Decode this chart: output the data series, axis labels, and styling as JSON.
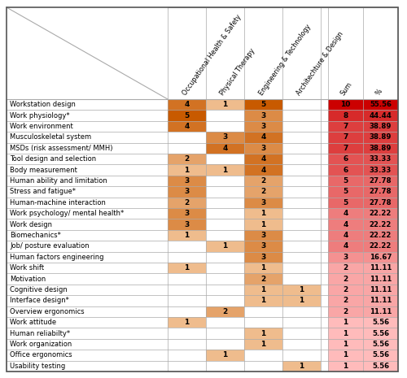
{
  "rows": [
    {
      "label": "Workstation design",
      "ohs": 4,
      "pt": 1,
      "et": 5,
      "ad": 0,
      "sum": 10,
      "pct": "55.56"
    },
    {
      "label": "Work physiology*",
      "ohs": 5,
      "pt": 0,
      "et": 3,
      "ad": 0,
      "sum": 8,
      "pct": "44.44"
    },
    {
      "label": "Work environment",
      "ohs": 4,
      "pt": 0,
      "et": 3,
      "ad": 0,
      "sum": 7,
      "pct": "38.89"
    },
    {
      "label": "Musculoskeletal system",
      "ohs": 0,
      "pt": 3,
      "et": 4,
      "ad": 0,
      "sum": 7,
      "pct": "38.89"
    },
    {
      "label": "MSDs (risk assessment/ MMH)",
      "ohs": 0,
      "pt": 4,
      "et": 3,
      "ad": 0,
      "sum": 7,
      "pct": "38.89"
    },
    {
      "label": "Tool design and selection",
      "ohs": 2,
      "pt": 0,
      "et": 4,
      "ad": 0,
      "sum": 6,
      "pct": "33.33"
    },
    {
      "label": "Body measurement",
      "ohs": 1,
      "pt": 1,
      "et": 4,
      "ad": 0,
      "sum": 6,
      "pct": "33.33"
    },
    {
      "label": "Human ability and limitation",
      "ohs": 3,
      "pt": 0,
      "et": 2,
      "ad": 0,
      "sum": 5,
      "pct": "27.78"
    },
    {
      "label": "Stress and fatigue*",
      "ohs": 3,
      "pt": 0,
      "et": 2,
      "ad": 0,
      "sum": 5,
      "pct": "27.78"
    },
    {
      "label": "Human-machine interaction",
      "ohs": 2,
      "pt": 0,
      "et": 3,
      "ad": 0,
      "sum": 5,
      "pct": "27.78"
    },
    {
      "label": "Work psychology/ mental health*",
      "ohs": 3,
      "pt": 0,
      "et": 1,
      "ad": 0,
      "sum": 4,
      "pct": "22.22"
    },
    {
      "label": "Work design",
      "ohs": 3,
      "pt": 0,
      "et": 1,
      "ad": 0,
      "sum": 4,
      "pct": "22.22"
    },
    {
      "label": "Biomechanics*",
      "ohs": 1,
      "pt": 0,
      "et": 3,
      "ad": 0,
      "sum": 4,
      "pct": "22.22"
    },
    {
      "label": "Job/ posture evaluation",
      "ohs": 0,
      "pt": 1,
      "et": 3,
      "ad": 0,
      "sum": 4,
      "pct": "22.22"
    },
    {
      "label": "Human factors engineering",
      "ohs": 0,
      "pt": 0,
      "et": 3,
      "ad": 0,
      "sum": 3,
      "pct": "16.67"
    },
    {
      "label": "Work shift",
      "ohs": 1,
      "pt": 0,
      "et": 1,
      "ad": 0,
      "sum": 2,
      "pct": "11.11"
    },
    {
      "label": "Motivation",
      "ohs": 0,
      "pt": 0,
      "et": 2,
      "ad": 0,
      "sum": 2,
      "pct": "11.11"
    },
    {
      "label": "Cognitive design",
      "ohs": 0,
      "pt": 0,
      "et": 1,
      "ad": 1,
      "sum": 2,
      "pct": "11.11"
    },
    {
      "label": "Interface design*",
      "ohs": 0,
      "pt": 0,
      "et": 1,
      "ad": 1,
      "sum": 2,
      "pct": "11.11"
    },
    {
      "label": "Overview ergonomics",
      "ohs": 0,
      "pt": 2,
      "et": 0,
      "ad": 0,
      "sum": 2,
      "pct": "11.11"
    },
    {
      "label": "Work attitude",
      "ohs": 1,
      "pt": 0,
      "et": 0,
      "ad": 0,
      "sum": 1,
      "pct": "5.56"
    },
    {
      "label": "Human reliabilty*",
      "ohs": 0,
      "pt": 0,
      "et": 1,
      "ad": 0,
      "sum": 1,
      "pct": "5.56"
    },
    {
      "label": "Work organization",
      "ohs": 0,
      "pt": 0,
      "et": 1,
      "ad": 0,
      "sum": 1,
      "pct": "5.56"
    },
    {
      "label": "Office ergonomics",
      "ohs": 0,
      "pt": 1,
      "et": 0,
      "ad": 0,
      "sum": 1,
      "pct": "5.56"
    },
    {
      "label": "Usability testing",
      "ohs": 0,
      "pt": 0,
      "et": 0,
      "ad": 1,
      "sum": 1,
      "pct": "5.56"
    }
  ],
  "col_headers": [
    "Occupational Health & Safety",
    "Physical Therapy",
    "Engineering & Technology",
    "Architechture & Design",
    "Sum",
    "%"
  ],
  "grid_color": "#AAAAAA",
  "cell_light": "#F9D4B0",
  "cell_dark": "#C85A00",
  "sum_light": "#FFBBBB",
  "sum_dark": "#CC0000",
  "max_val": 5
}
